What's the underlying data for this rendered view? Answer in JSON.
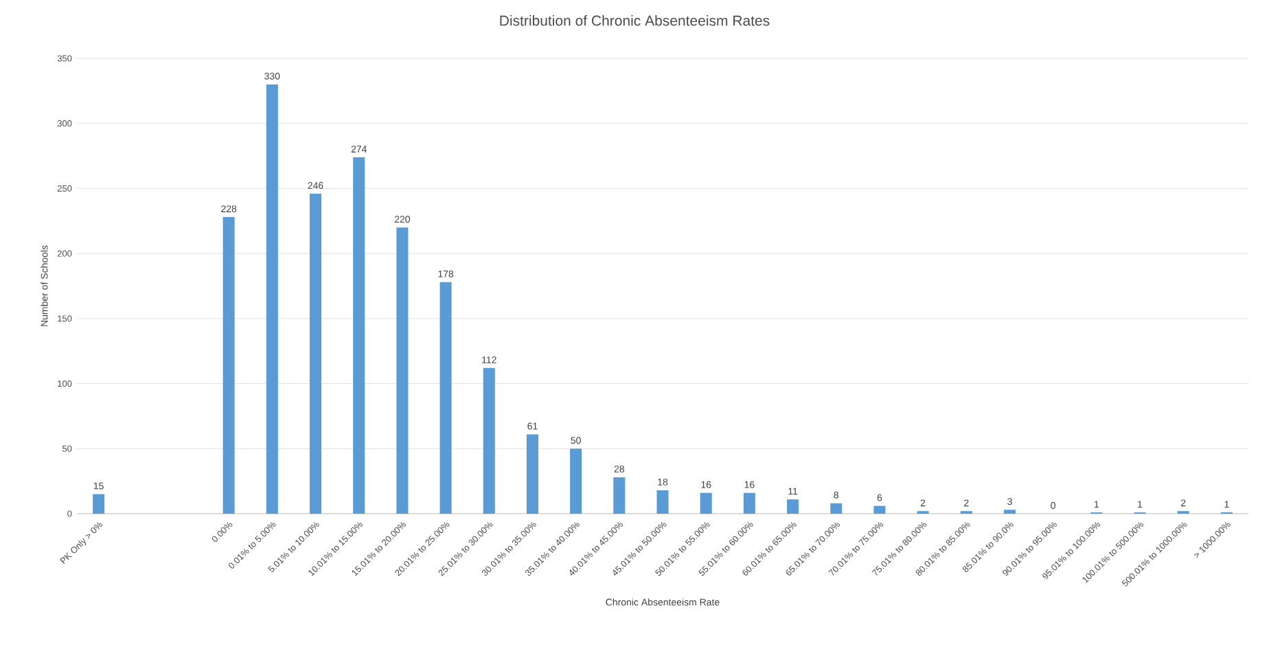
{
  "chart_data": {
    "type": "bar",
    "title": "Distribution of Chronic Absenteeism Rates",
    "xlabel": "Chronic Absenteeism Rate",
    "ylabel": "Number of Schools",
    "categories": [
      "PK Only > 0%",
      null,
      null,
      "0.00%",
      "0.01% to 5.00%",
      "5.01% to 10.00%",
      "10.01% to 15.00%",
      "15.01% to 20.00%",
      "20.01% to 25.00%",
      "25.01% to 30.00%",
      "30.01% to 35.00%",
      "35.01% to 40.00%",
      "40.01% to 45.00%",
      "45.01% to 50.00%",
      "50.01% to 55.00%",
      "55.01% to 60.00%",
      "60.01% to 65.00%",
      "65.01% to 70.00%",
      "70.01% to 75.00%",
      "75.01% to 80.00%",
      "80.01% to 85.00%",
      "85.01% to 90.0%",
      "90.01% to 95.00%",
      "95.01% to 100.00%",
      "100.01% to 500.00%",
      "500.01% to 1000.00%",
      "> 1000.00%"
    ],
    "values": [
      15,
      null,
      null,
      228,
      330,
      246,
      274,
      220,
      178,
      112,
      61,
      50,
      28,
      18,
      16,
      16,
      11,
      8,
      6,
      2,
      2,
      3,
      0,
      1,
      1,
      2,
      1
    ],
    "color": "#5b9bd5",
    "ylim": [
      0,
      350
    ],
    "yticks": [
      0,
      50,
      100,
      150,
      200,
      250,
      300,
      350
    ],
    "grid": "y",
    "data_labels": true
  }
}
